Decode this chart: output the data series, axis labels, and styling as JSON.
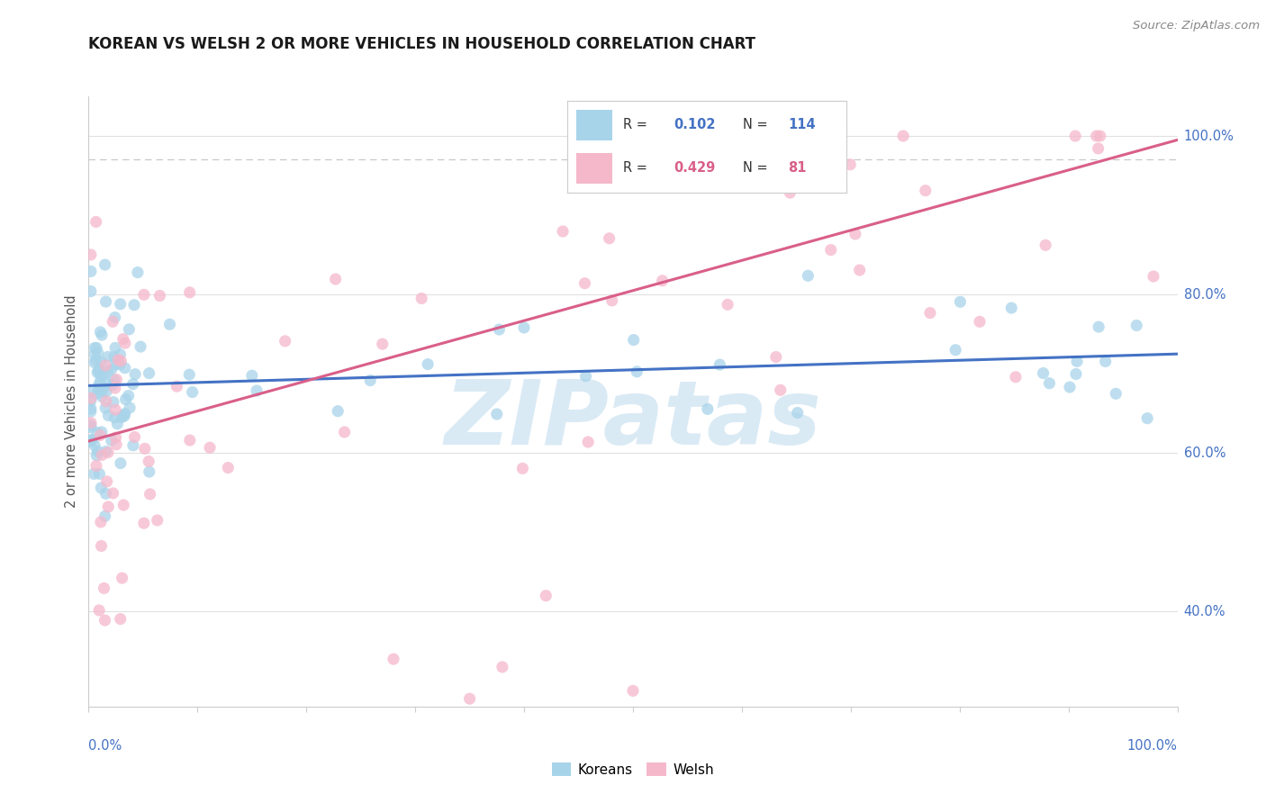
{
  "title": "KOREAN VS WELSH 2 OR MORE VEHICLES IN HOUSEHOLD CORRELATION CHART",
  "source": "Source: ZipAtlas.com",
  "ylabel": "2 or more Vehicles in Household",
  "xmin": 0.0,
  "xmax": 1.0,
  "ymin": 0.28,
  "ymax": 1.05,
  "yticks": [
    0.4,
    0.6,
    0.8,
    1.0
  ],
  "ytick_labels": [
    "40.0%",
    "60.0%",
    "80.0%",
    "100.0%"
  ],
  "korean_R": 0.102,
  "korean_N": 114,
  "welsh_R": 0.429,
  "welsh_N": 81,
  "korean_color": "#a8d4ea",
  "welsh_color": "#f5b8cb",
  "korean_line_color": "#4472c4",
  "welsh_line_color": "#d95f8a",
  "tick_label_color": "#4472c4",
  "legend_label_korean": "Koreans",
  "legend_label_welsh": "Welsh",
  "watermark_text": "ZIPatas",
  "watermark_color": "#daeaf5",
  "background_color": "#ffffff",
  "grid_color": "#e0e0e0",
  "korean_line_start_y": 0.685,
  "korean_line_end_y": 0.725,
  "welsh_line_start_y": 0.615,
  "welsh_line_end_y": 0.995,
  "dotted_line_y": 0.97,
  "source_color": "#888888"
}
